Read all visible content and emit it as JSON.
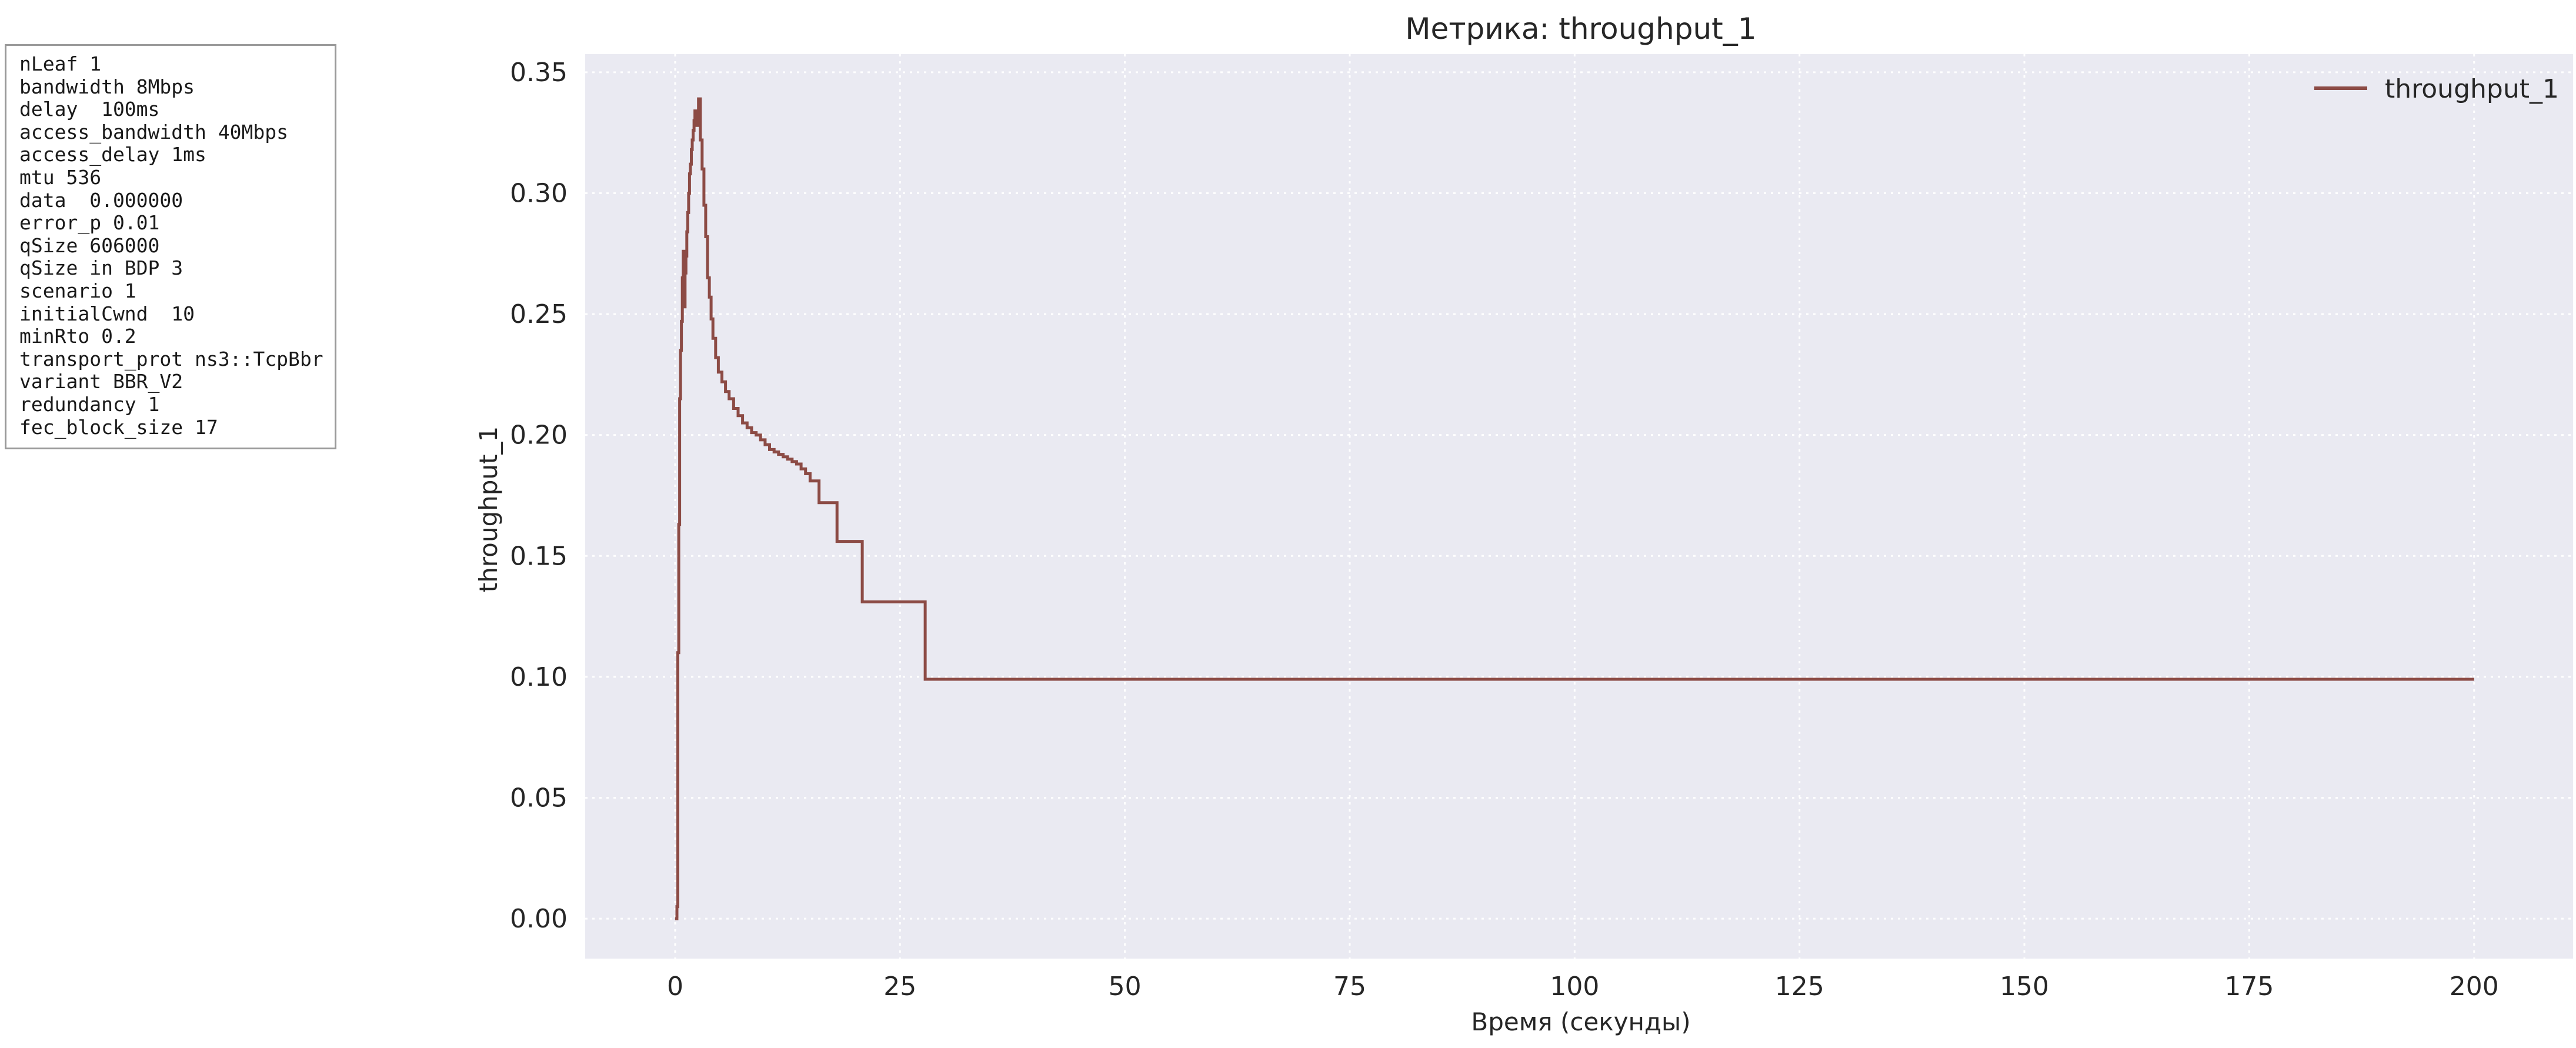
{
  "params_box": {
    "lines": [
      "nLeaf 1",
      "bandwidth 8Mbps",
      "delay  100ms",
      "access_bandwidth 40Mbps",
      "access_delay 1ms",
      "mtu 536",
      "data  0.000000",
      "error_p 0.01",
      "qSize 606000",
      "qSize in BDP 3",
      "scenario 1",
      "initialCwnd  10",
      "minRto 0.2",
      "transport_prot ns3::TcpBbr",
      "variant BBR_V2",
      "redundancy 1",
      "fec_block_size 17"
    ]
  },
  "chart_data": {
    "type": "line",
    "step": true,
    "title": "Метрика: throughput_1",
    "xlabel": "Время (секунды)",
    "ylabel": "throughput_1",
    "xlim": [
      -10,
      211
    ],
    "ylim": [
      -0.0165,
      0.3575
    ],
    "xticks": [
      0,
      25,
      50,
      75,
      100,
      125,
      150,
      175,
      200
    ],
    "xtick_labels": [
      "0",
      "25",
      "50",
      "75",
      "100",
      "125",
      "150",
      "175",
      "200"
    ],
    "yticks": [
      0.0,
      0.05,
      0.1,
      0.15,
      0.2,
      0.25,
      0.3,
      0.35
    ],
    "ytick_labels": [
      "0.00",
      "0.05",
      "0.10",
      "0.15",
      "0.20",
      "0.25",
      "0.30",
      "0.35"
    ],
    "grid": true,
    "legend": "top-right",
    "colors": {
      "series": "#8c4b45",
      "plot_bg": "#eaeaf2",
      "grid": "#ffffff"
    },
    "series": [
      {
        "name": "throughput_1",
        "x": [
          0.0,
          0.2,
          0.3,
          0.4,
          0.5,
          0.6,
          0.7,
          0.8,
          0.9,
          1.0,
          1.1,
          1.2,
          1.3,
          1.4,
          1.5,
          1.6,
          1.7,
          1.8,
          1.9,
          2.0,
          2.1,
          2.2,
          2.4,
          2.6,
          2.8,
          3.0,
          3.2,
          3.4,
          3.6,
          3.8,
          4.0,
          4.2,
          4.5,
          4.8,
          5.2,
          5.6,
          6.0,
          6.5,
          7.0,
          7.5,
          8.0,
          8.5,
          9.0,
          9.5,
          10.0,
          10.5,
          11.0,
          11.5,
          12.0,
          12.5,
          13.0,
          13.5,
          14.0,
          14.5,
          15.0,
          16.0,
          17.0,
          17.5,
          18.0,
          19.0,
          20.0,
          20.8,
          21.0,
          22.0,
          24.0,
          26.0,
          27.8,
          28.0,
          50.0,
          100.0,
          150.0,
          200.0
        ],
        "y": [
          0.0,
          0.005,
          0.11,
          0.163,
          0.215,
          0.235,
          0.247,
          0.265,
          0.276,
          0.253,
          0.267,
          0.274,
          0.284,
          0.292,
          0.3,
          0.308,
          0.312,
          0.318,
          0.322,
          0.326,
          0.33,
          0.334,
          0.328,
          0.339,
          0.322,
          0.31,
          0.295,
          0.282,
          0.265,
          0.257,
          0.248,
          0.24,
          0.232,
          0.226,
          0.222,
          0.218,
          0.215,
          0.211,
          0.208,
          0.205,
          0.203,
          0.201,
          0.2,
          0.198,
          0.196,
          0.194,
          0.193,
          0.192,
          0.191,
          0.19,
          0.189,
          0.188,
          0.186,
          0.184,
          0.181,
          0.172,
          0.172,
          0.172,
          0.156,
          0.156,
          0.156,
          0.131,
          0.131,
          0.131,
          0.131,
          0.131,
          0.099,
          0.099,
          0.099,
          0.099,
          0.099,
          0.099
        ]
      }
    ]
  }
}
